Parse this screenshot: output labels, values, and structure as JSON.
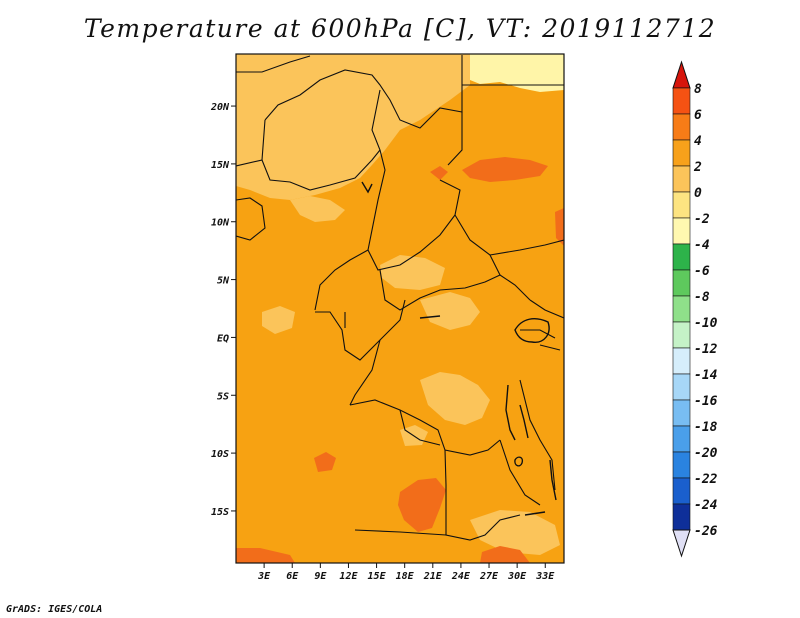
{
  "title": "Temperature at 600hPa [C], VT: 2019112712",
  "credit": "GrADS: IGES/COLA",
  "map": {
    "lon_range": [
      0,
      35
    ],
    "lat_range": [
      -19.5,
      24.5
    ],
    "lat_ticks": [
      {
        "value": 20,
        "label": "20N"
      },
      {
        "value": 15,
        "label": "15N"
      },
      {
        "value": 10,
        "label": "10N"
      },
      {
        "value": 5,
        "label": "5N"
      },
      {
        "value": 0,
        "label": "EQ"
      },
      {
        "value": -5,
        "label": "5S"
      },
      {
        "value": -10,
        "label": "10S"
      },
      {
        "value": -15,
        "label": "15S"
      }
    ],
    "lon_ticks": [
      {
        "value": 3,
        "label": "3E"
      },
      {
        "value": 6,
        "label": "6E"
      },
      {
        "value": 9,
        "label": "9E"
      },
      {
        "value": 12,
        "label": "12E"
      },
      {
        "value": 15,
        "label": "15E"
      },
      {
        "value": 18,
        "label": "18E"
      },
      {
        "value": 21,
        "label": "21E"
      },
      {
        "value": 24,
        "label": "24E"
      },
      {
        "value": 27,
        "label": "27E"
      },
      {
        "value": 30,
        "label": "30E"
      },
      {
        "value": 33,
        "label": "33E"
      }
    ],
    "dominant_range": "2 to 4",
    "colors": {
      "below_neg2": "#fff5a8",
      "range_0_2": "#fbc45a",
      "range_2_4": "#f7a212",
      "range_4_6": "#f26d1a",
      "boundary": "#111111"
    }
  },
  "colorbar": {
    "levels": [
      "8",
      "6",
      "4",
      "2",
      "0",
      "-2",
      "-4",
      "-6",
      "-8",
      "-10",
      "-12",
      "-14",
      "-16",
      "-18",
      "-20",
      "-22",
      "-24",
      "-26"
    ],
    "colors": [
      "#f0230f",
      "#f55213",
      "#f77c17",
      "#f7a11b",
      "#fbc45a",
      "#fde481",
      "#fff8b0",
      "#2db34a",
      "#5ec95d",
      "#8fe08a",
      "#c5f2c7",
      "#d6eefb",
      "#a7d7f7",
      "#78bdf2",
      "#4a9fea",
      "#2a83e0",
      "#1a5fcd",
      "#0e2f99",
      "#0a1a70"
    ],
    "top_arrow_color": "#d7150c",
    "bottom_arrow_color": "#e0e0f5"
  }
}
